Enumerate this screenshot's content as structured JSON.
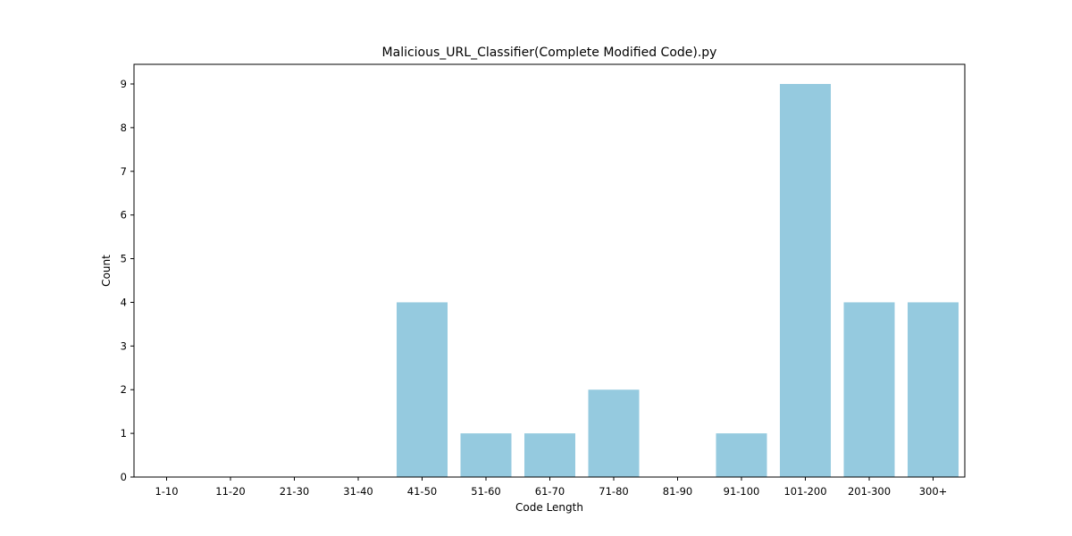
{
  "chart_data": {
    "type": "bar",
    "title": "Malicious_URL_Classifier(Complete Modified Code).py",
    "xlabel": "Code Length",
    "ylabel": "Count",
    "categories": [
      "1-10",
      "11-20",
      "21-30",
      "31-40",
      "41-50",
      "51-60",
      "61-70",
      "71-80",
      "81-90",
      "91-100",
      "101-200",
      "201-300",
      "300+"
    ],
    "values": [
      0,
      0,
      0,
      0,
      4,
      1,
      1,
      2,
      0,
      1,
      9,
      4,
      4
    ],
    "ylim": [
      0,
      9.45
    ],
    "yticks": [
      0,
      1,
      2,
      3,
      4,
      5,
      6,
      7,
      8,
      9
    ],
    "bar_color": "#95cadf",
    "grid": false,
    "legend": "none"
  }
}
